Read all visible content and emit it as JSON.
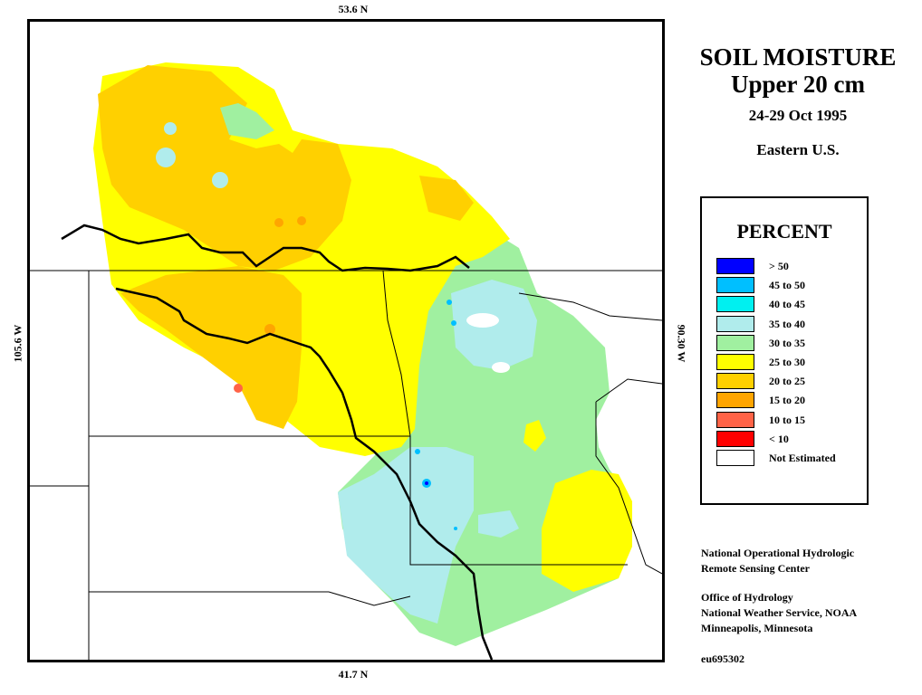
{
  "coordinates": {
    "top": "53.6 N",
    "bottom": "41.7 N",
    "left": "105.6 W",
    "right": "90.30 W"
  },
  "title": {
    "line1": "SOIL MOISTURE",
    "line2": "Upper 20 cm",
    "date": "24-29 Oct 1995",
    "region": "Eastern U.S."
  },
  "legend": {
    "title": "PERCENT",
    "items": [
      {
        "label": "> 50",
        "color": "#0000ff"
      },
      {
        "label": "45 to 50",
        "color": "#00bfff"
      },
      {
        "label": "40 to 45",
        "color": "#00f0f0"
      },
      {
        "label": "35 to 40",
        "color": "#b0ecec"
      },
      {
        "label": "30 to 35",
        "color": "#a0f0a0"
      },
      {
        "label": "25 to 30",
        "color": "#ffff00"
      },
      {
        "label": "20 to 25",
        "color": "#ffd000"
      },
      {
        "label": "15 to 20",
        "color": "#ffa500"
      },
      {
        "label": "10 to 15",
        "color": "#ff6347"
      },
      {
        "label": "< 10",
        "color": "#ff0000"
      },
      {
        "label": "Not Estimated",
        "color": "#ffffff"
      }
    ]
  },
  "credits": {
    "line1": "National Operational Hydrologic",
    "line2": "Remote Sensing Center",
    "line3": "Office of Hydrology",
    "line4": "National Weather Service, NOAA",
    "line5": "Minneapolis, Minnesota",
    "product_id": "eu695302"
  }
}
